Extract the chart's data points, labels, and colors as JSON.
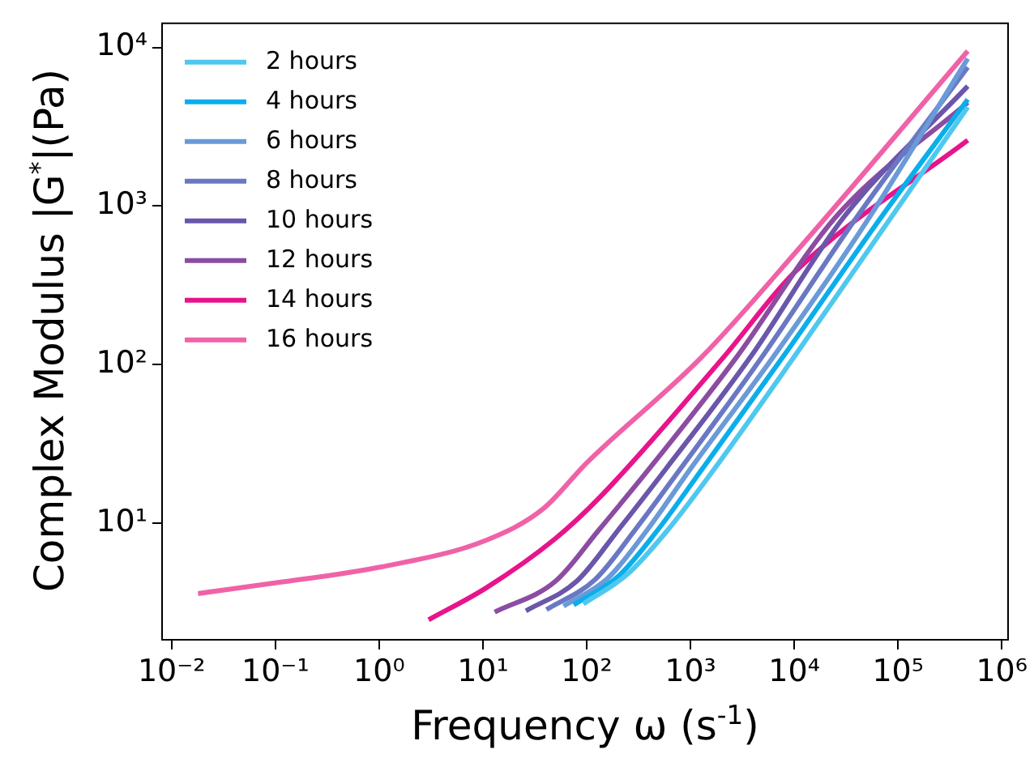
{
  "chart_data": {
    "type": "line",
    "xlabel": "Frequency ω (s$^{-1}$)",
    "ylabel": "Complex Modulus |G$^{*}$|(Pa)",
    "log": "xy",
    "grid": false,
    "legend": "top left",
    "marker": "none",
    "line_style": "solid",
    "xlim": [
      0.0081,
      1150000
    ],
    "ylim": [
      1.84,
      14200
    ],
    "xticks": [
      {
        "value": 0.01,
        "label": "10⁻²"
      },
      {
        "value": 0.1,
        "label": "10⁻¹"
      },
      {
        "value": 1,
        "label": "10⁰"
      },
      {
        "value": 10,
        "label": "10¹"
      },
      {
        "value": 100,
        "label": "10²"
      },
      {
        "value": 1000,
        "label": "10³"
      },
      {
        "value": 10000,
        "label": "10⁴"
      },
      {
        "value": 100000,
        "label": "10⁵"
      },
      {
        "value": 1000000,
        "label": "10⁶"
      }
    ],
    "yticks": [
      {
        "value": 10,
        "label": "10¹"
      },
      {
        "value": 100,
        "label": "10²"
      },
      {
        "value": 1000,
        "label": "10³"
      },
      {
        "value": 10000,
        "label": "10⁴"
      }
    ],
    "series": [
      {
        "name": "2 hours",
        "color": "#4fc8f0",
        "x": [
          93,
          250,
          600,
          1700,
          10000,
          70000,
          470000
        ],
        "values": [
          3.1,
          4.8,
          9,
          22,
          112,
          700,
          4200
        ]
      },
      {
        "name": "4 hours",
        "color": "#0aaeea",
        "x": [
          75,
          200,
          480,
          1300,
          7800,
          60000,
          470000
        ],
        "values": [
          3.05,
          4.6,
          9,
          22,
          112,
          750,
          4700
        ]
      },
      {
        "name": "6 hours",
        "color": "#6a9ad8",
        "x": [
          60,
          160,
          380,
          1000,
          6300,
          50000,
          470000
        ],
        "values": [
          3.0,
          4.5,
          9,
          22,
          112,
          800,
          8500
        ]
      },
      {
        "name": "8 hours",
        "color": "#6a78c4",
        "x": [
          41,
          120,
          290,
          800,
          4900,
          40000,
          470000
        ],
        "values": [
          2.85,
          4.4,
          9,
          22,
          112,
          850,
          7500
        ]
      },
      {
        "name": "10 hours",
        "color": "#6a56aa",
        "x": [
          26,
          80,
          200,
          580,
          3800,
          30000,
          470000
        ],
        "values": [
          2.8,
          4.3,
          9,
          22,
          112,
          850,
          5700
        ]
      },
      {
        "name": "12 hours",
        "color": "#8c4ca2",
        "x": [
          13,
          50,
          130,
          400,
          2800,
          25000,
          470000
        ],
        "values": [
          2.75,
          4.3,
          9,
          22,
          112,
          850,
          4500
        ]
      },
      {
        "name": "14 hours",
        "color": "#e8148c",
        "x": [
          3,
          10.7,
          50,
          133,
          2100,
          10000,
          470000
        ],
        "values": [
          2.46,
          3.9,
          8,
          14.5,
          112,
          380,
          2600
        ]
      },
      {
        "name": "16 hours",
        "color": "#f062a8",
        "x": [
          0.018,
          0.1,
          1.05,
          10.7,
          38,
          100,
          1290,
          10700,
          470000
        ],
        "values": [
          3.6,
          4.2,
          5.3,
          7.8,
          12.3,
          24,
          112,
          525,
          9500
        ]
      }
    ]
  }
}
